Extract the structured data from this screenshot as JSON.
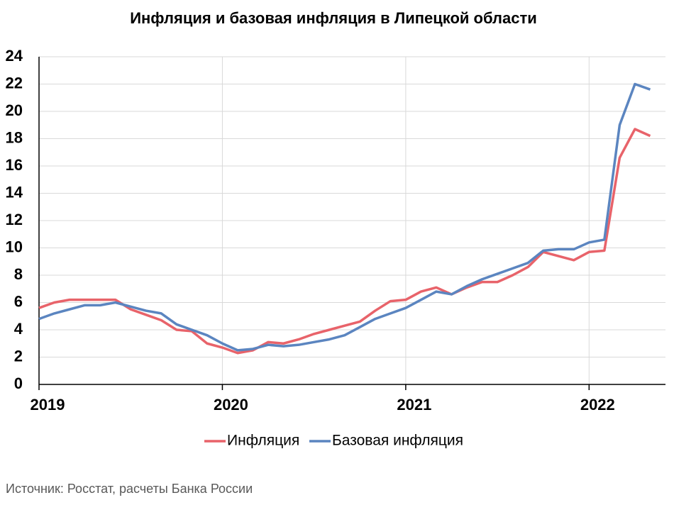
{
  "chart_data": {
    "type": "line",
    "title": "Инфляция и базовая инфляция в Липецкой области",
    "source": "Источник: Росстат, расчеты Банка России",
    "x": [
      0,
      1,
      2,
      3,
      4,
      5,
      6,
      7,
      8,
      9,
      10,
      11,
      12,
      13,
      14,
      15,
      16,
      17,
      18,
      19,
      20,
      21,
      22,
      23,
      24,
      25,
      26,
      27,
      28,
      29,
      30,
      31,
      32,
      33,
      34,
      35,
      36,
      37,
      38,
      39,
      40
    ],
    "series": [
      {
        "name": "Инфляция",
        "color": "#e8636a",
        "values": [
          5.6,
          6.0,
          6.2,
          6.2,
          6.2,
          6.2,
          5.5,
          5.1,
          4.7,
          4.0,
          3.9,
          3.0,
          2.7,
          2.3,
          2.5,
          3.1,
          3.0,
          3.3,
          3.7,
          4.0,
          4.3,
          4.6,
          5.4,
          6.1,
          6.2,
          6.8,
          7.1,
          6.6,
          7.1,
          7.5,
          7.5,
          8.0,
          8.6,
          9.7,
          9.4,
          9.1,
          9.7,
          9.8,
          16.6,
          18.7,
          18.2
        ]
      },
      {
        "name": "Базовая инфляция",
        "color": "#5b85c0",
        "values": [
          4.8,
          5.2,
          5.5,
          5.8,
          5.8,
          6.0,
          5.7,
          5.4,
          5.2,
          4.4,
          4.0,
          3.6,
          3.0,
          2.5,
          2.6,
          2.9,
          2.8,
          2.9,
          3.1,
          3.3,
          3.6,
          4.2,
          4.8,
          5.2,
          5.6,
          6.2,
          6.8,
          6.6,
          7.2,
          7.7,
          8.1,
          8.5,
          8.9,
          9.8,
          9.9,
          9.9,
          10.4,
          10.6,
          19.0,
          22.0,
          21.6
        ]
      }
    ],
    "xlim": [
      0,
      41
    ],
    "xticks": [
      {
        "value": 0,
        "label": "2019"
      },
      {
        "value": 12,
        "label": "2020"
      },
      {
        "value": 24,
        "label": "2021"
      },
      {
        "value": 36,
        "label": "2022"
      }
    ],
    "ylim": [
      0,
      24
    ],
    "yticks": [
      0,
      2,
      4,
      6,
      8,
      10,
      12,
      14,
      16,
      18,
      20,
      22,
      24
    ],
    "grid": true,
    "legend": "bottom"
  }
}
